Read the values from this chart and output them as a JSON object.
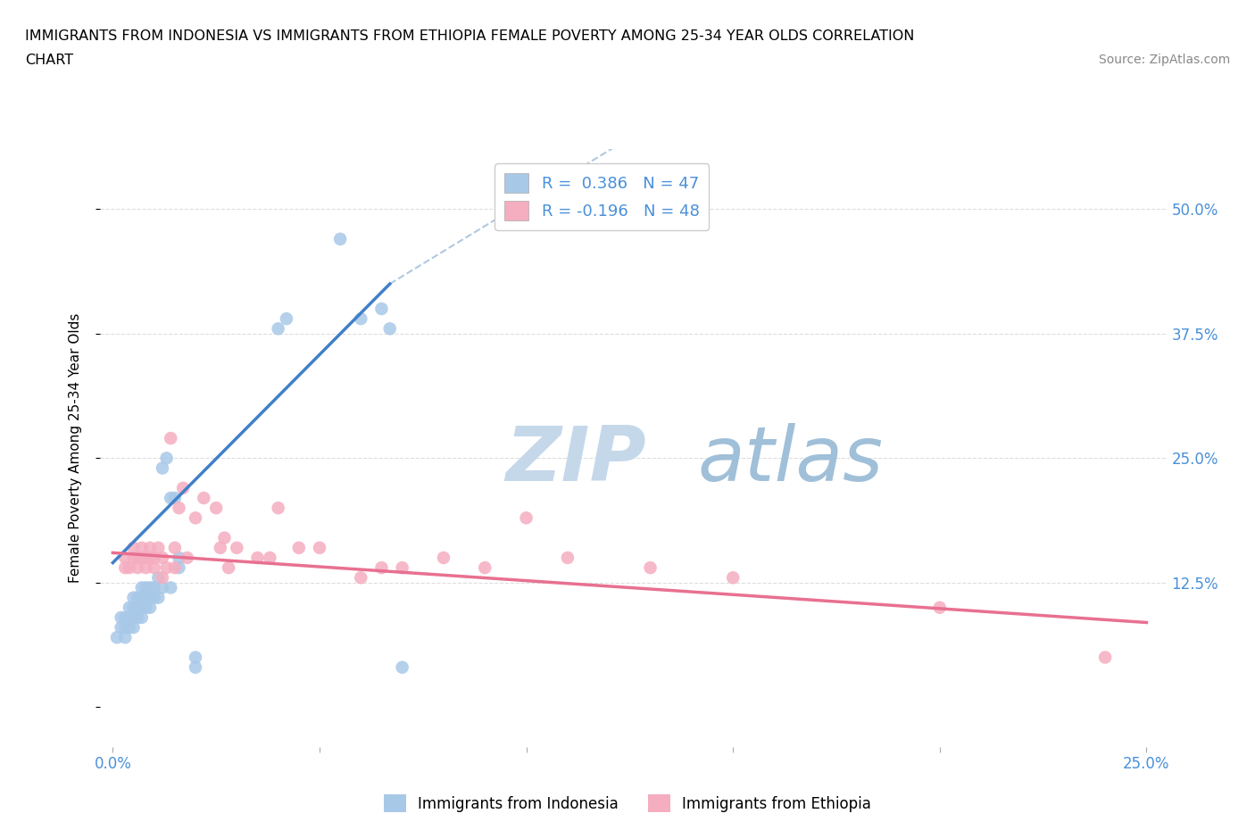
{
  "title_line1": "IMMIGRANTS FROM INDONESIA VS IMMIGRANTS FROM ETHIOPIA FEMALE POVERTY AMONG 25-34 YEAR OLDS CORRELATION",
  "title_line2": "CHART",
  "source": "Source: ZipAtlas.com",
  "ylabel": "Female Poverty Among 25-34 Year Olds",
  "xlim": [
    -0.003,
    0.255
  ],
  "ylim": [
    -0.04,
    0.56
  ],
  "xticks": [
    0.0,
    0.05,
    0.1,
    0.15,
    0.2,
    0.25
  ],
  "xticklabels": [
    "0.0%",
    "",
    "",
    "",
    "",
    "25.0%"
  ],
  "yticks": [
    0.0,
    0.125,
    0.25,
    0.375,
    0.5
  ],
  "right_yticklabels": [
    "",
    "12.5%",
    "25.0%",
    "37.5%",
    "50.0%"
  ],
  "color_indonesia": "#a8c8e8",
  "color_ethiopia": "#f5adc0",
  "color_indonesia_line": "#4080c8",
  "color_ethiopia_line": "#e87090",
  "color_dashed": "#b0c8e0",
  "watermark_zip": "ZIP",
  "watermark_atlas": "atlas",
  "watermark_color_zip": "#c5d8ea",
  "watermark_color_atlas": "#a0bfd8",
  "tick_color": "#4a90d9",
  "grid_color": "#dddddd",
  "legend_label1": "R =  0.386   N = 47",
  "legend_label2": "R = -0.196   N = 48",
  "indonesia_x": [
    0.001,
    0.002,
    0.002,
    0.003,
    0.003,
    0.003,
    0.004,
    0.004,
    0.004,
    0.005,
    0.005,
    0.005,
    0.005,
    0.006,
    0.006,
    0.006,
    0.007,
    0.007,
    0.007,
    0.007,
    0.008,
    0.008,
    0.008,
    0.009,
    0.009,
    0.009,
    0.01,
    0.01,
    0.011,
    0.011,
    0.012,
    0.012,
    0.013,
    0.014,
    0.014,
    0.015,
    0.016,
    0.016,
    0.02,
    0.02,
    0.04,
    0.042,
    0.055,
    0.06,
    0.065,
    0.067,
    0.07
  ],
  "indonesia_y": [
    0.07,
    0.08,
    0.09,
    0.07,
    0.08,
    0.09,
    0.08,
    0.09,
    0.1,
    0.08,
    0.09,
    0.1,
    0.11,
    0.09,
    0.1,
    0.11,
    0.09,
    0.1,
    0.11,
    0.12,
    0.1,
    0.11,
    0.12,
    0.1,
    0.11,
    0.12,
    0.11,
    0.12,
    0.11,
    0.13,
    0.12,
    0.24,
    0.25,
    0.12,
    0.21,
    0.21,
    0.14,
    0.15,
    0.04,
    0.05,
    0.38,
    0.39,
    0.47,
    0.39,
    0.4,
    0.38,
    0.04
  ],
  "ethiopia_x": [
    0.003,
    0.003,
    0.004,
    0.005,
    0.005,
    0.006,
    0.006,
    0.007,
    0.007,
    0.008,
    0.008,
    0.009,
    0.009,
    0.01,
    0.01,
    0.011,
    0.012,
    0.012,
    0.013,
    0.014,
    0.015,
    0.015,
    0.016,
    0.017,
    0.018,
    0.02,
    0.022,
    0.025,
    0.026,
    0.027,
    0.028,
    0.03,
    0.035,
    0.038,
    0.04,
    0.045,
    0.05,
    0.06,
    0.065,
    0.07,
    0.08,
    0.09,
    0.1,
    0.11,
    0.13,
    0.15,
    0.2,
    0.24
  ],
  "ethiopia_y": [
    0.14,
    0.15,
    0.14,
    0.15,
    0.16,
    0.14,
    0.15,
    0.15,
    0.16,
    0.14,
    0.15,
    0.15,
    0.16,
    0.14,
    0.15,
    0.16,
    0.13,
    0.15,
    0.14,
    0.27,
    0.14,
    0.16,
    0.2,
    0.22,
    0.15,
    0.19,
    0.21,
    0.2,
    0.16,
    0.17,
    0.14,
    0.16,
    0.15,
    0.15,
    0.2,
    0.16,
    0.16,
    0.13,
    0.14,
    0.14,
    0.15,
    0.14,
    0.19,
    0.15,
    0.14,
    0.13,
    0.1,
    0.05
  ],
  "blue_line_x": [
    0.0,
    0.067
  ],
  "blue_line_y": [
    0.145,
    0.425
  ],
  "dashed_line_x": [
    0.067,
    0.255
  ],
  "dashed_line_y": [
    0.425,
    0.9
  ],
  "pink_line_x": [
    0.0,
    0.25
  ],
  "pink_line_y": [
    0.155,
    0.085
  ]
}
